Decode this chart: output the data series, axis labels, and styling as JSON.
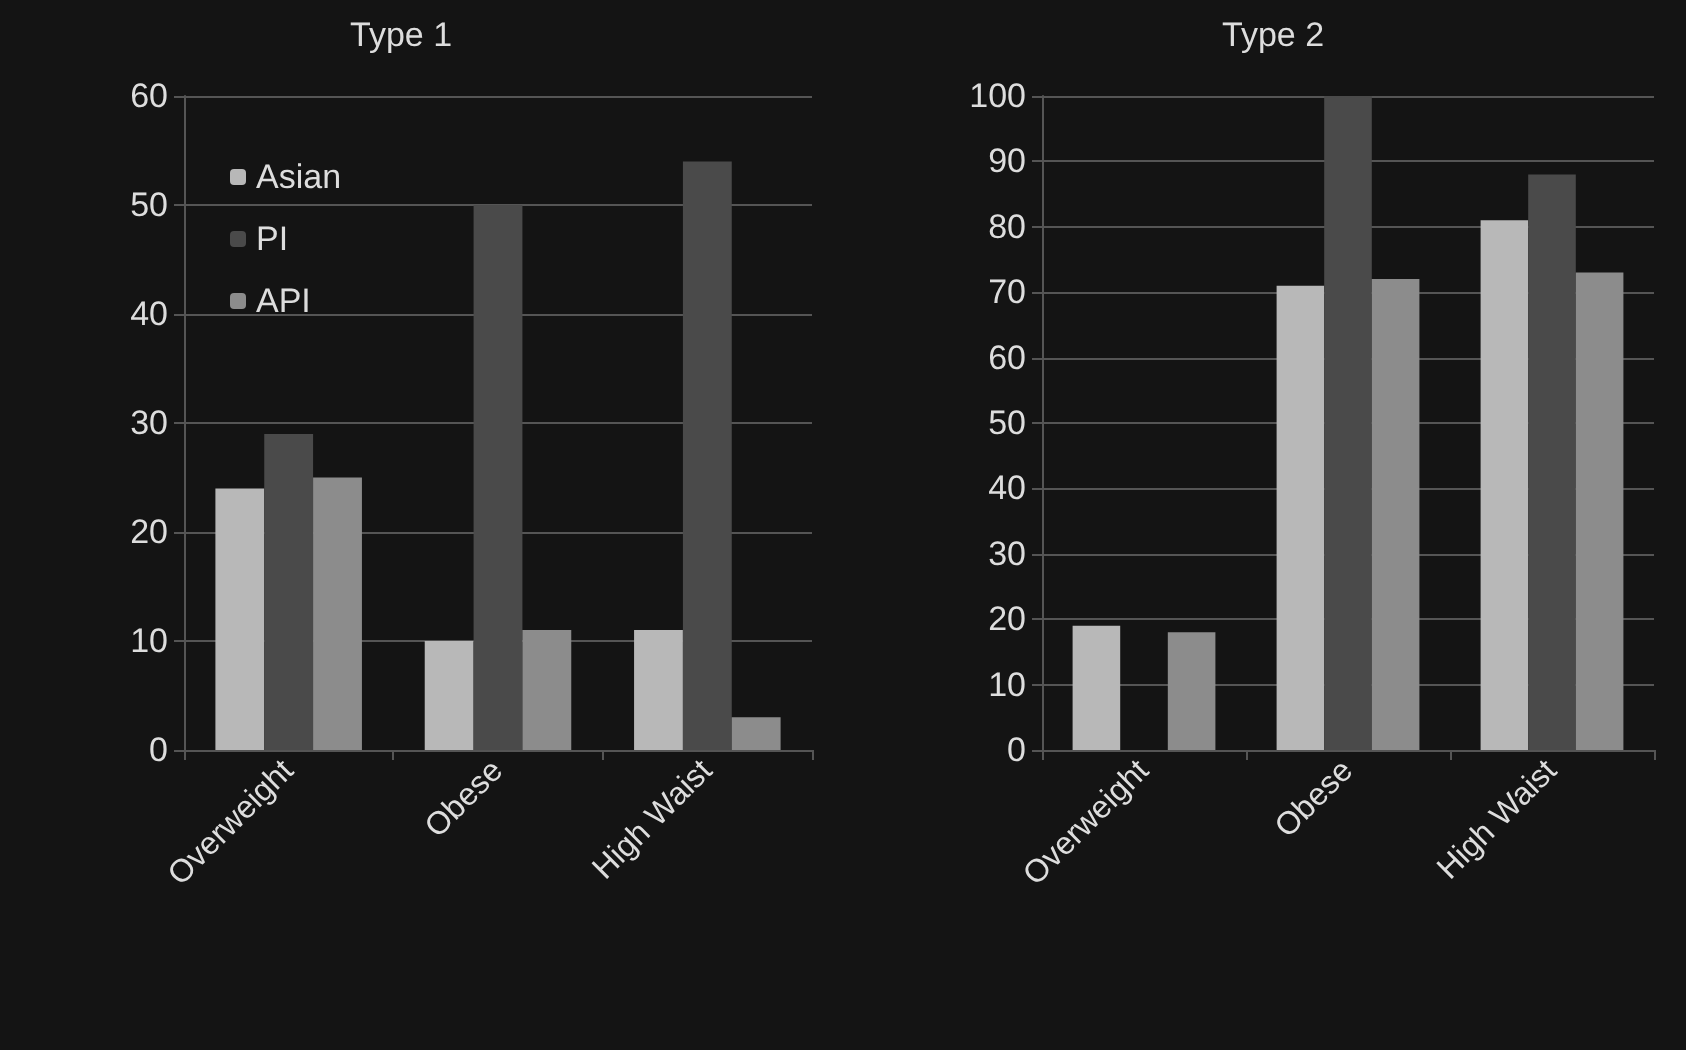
{
  "chart_data": [
    {
      "type": "bar",
      "title": "Type 1",
      "categories": [
        "Overweight",
        "Obese",
        "High Waist"
      ],
      "series": [
        {
          "name": "Asian",
          "color": "#b8b8b8",
          "values": [
            24,
            10,
            11
          ]
        },
        {
          "name": "PI",
          "color": "#4a4a4a",
          "values": [
            29,
            50,
            54
          ]
        },
        {
          "name": "API",
          "color": "#8c8c8c",
          "values": [
            25,
            11,
            3
          ]
        }
      ],
      "ylim": [
        0,
        60
      ],
      "yticks": [
        0,
        10,
        20,
        30,
        40,
        50,
        60
      ],
      "grid": "y",
      "legend": "top left"
    },
    {
      "type": "bar",
      "title": "Type 2",
      "categories": [
        "Overweight",
        "Obese",
        "High Waist"
      ],
      "series": [
        {
          "color": "#b8b8b8",
          "values": [
            19,
            71,
            81
          ]
        },
        {
          "color": "#4a4a4a",
          "values": [
            0,
            100,
            88
          ]
        },
        {
          "color": "#8c8c8c",
          "values": [
            18,
            72,
            73
          ]
        }
      ],
      "ylim": [
        0,
        100
      ],
      "yticks": [
        0,
        10,
        20,
        30,
        40,
        50,
        60,
        70,
        80,
        90,
        100
      ],
      "grid": "y",
      "legend": false
    }
  ]
}
